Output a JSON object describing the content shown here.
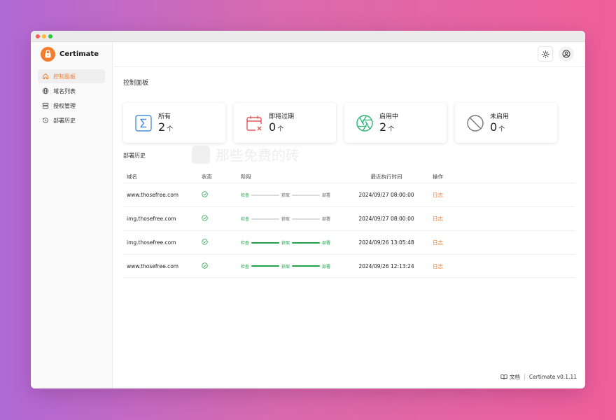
{
  "app": {
    "name": "Certimate",
    "version": "Certimate v0.1.11"
  },
  "sidebar": {
    "items": [
      {
        "label": "控制面板",
        "icon": "home-icon",
        "active": true
      },
      {
        "label": "域名列表",
        "icon": "globe-icon",
        "active": false
      },
      {
        "label": "授权管理",
        "icon": "server-icon",
        "active": false
      },
      {
        "label": "部署历史",
        "icon": "history-icon",
        "active": false
      }
    ]
  },
  "page": {
    "title": "控制面板"
  },
  "stats": [
    {
      "label": "所有",
      "count": "2",
      "unit": "个",
      "icon": "sigma-icon",
      "color": "#4a90e2"
    },
    {
      "label": "即将过期",
      "count": "0",
      "unit": "个",
      "icon": "calendar-x-icon",
      "color": "#e0565b"
    },
    {
      "label": "启用中",
      "count": "2",
      "unit": "个",
      "icon": "aperture-icon",
      "color": "#2bb673"
    },
    {
      "label": "未启用",
      "count": "0",
      "unit": "个",
      "icon": "ban-icon",
      "color": "#777777"
    }
  ],
  "watermark": "那些免费的砖",
  "history": {
    "title": "部署历史",
    "columns": [
      "域名",
      "状态",
      "阶段",
      "最近执行时间",
      "操作"
    ],
    "rows": [
      {
        "domain": "www.thosefree.com",
        "stages": [
          "检查",
          "获取",
          "部署"
        ],
        "progress": 1,
        "time": "2024/09/27 08:00:00",
        "action": "日志"
      },
      {
        "domain": "img.thosefree.com",
        "stages": [
          "检查",
          "获取",
          "部署"
        ],
        "progress": 1,
        "time": "2024/09/27 08:00:00",
        "action": "日志"
      },
      {
        "domain": "img.thosefree.com",
        "stages": [
          "检查",
          "获取",
          "部署"
        ],
        "progress": 3,
        "time": "2024/09/26 13:05:48",
        "action": "日志"
      },
      {
        "domain": "www.thosefree.com",
        "stages": [
          "检查",
          "获取",
          "部署"
        ],
        "progress": 3,
        "time": "2024/09/26 12:13:24",
        "action": "日志"
      }
    ]
  },
  "footer": {
    "docs_label": "文档"
  },
  "colors": {
    "accent": "#f47c2c",
    "success": "#22a34a"
  }
}
